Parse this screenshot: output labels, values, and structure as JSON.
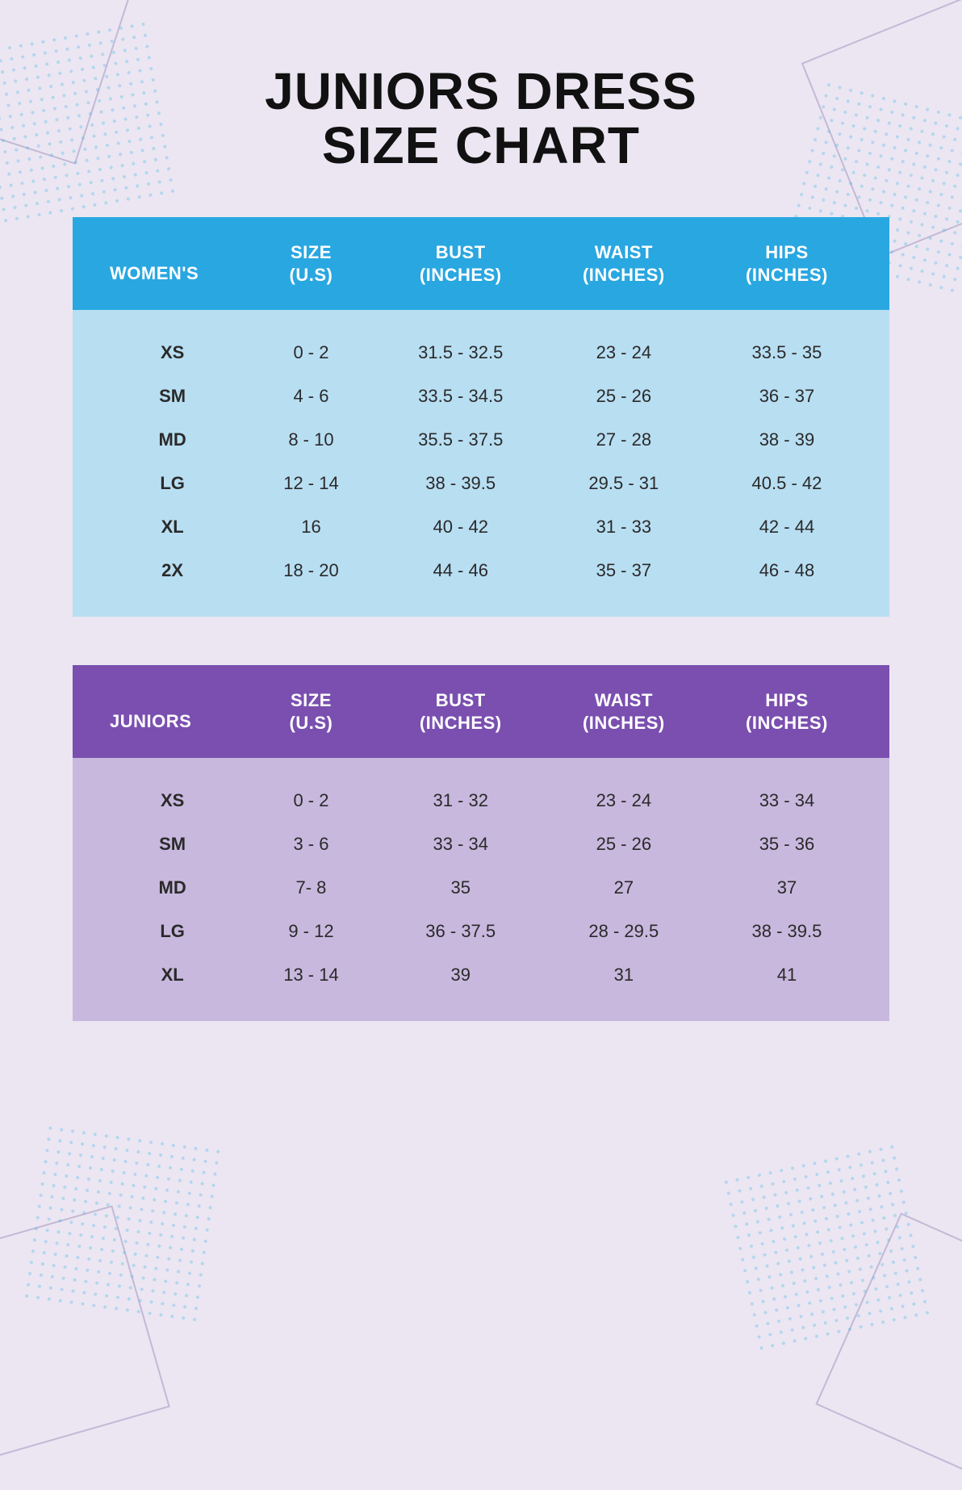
{
  "title_line1": "JUNIORS DRESS",
  "title_line2": "SIZE CHART",
  "colors": {
    "page_bg": "#ebe6f2",
    "womens_header": "#29a7e1",
    "womens_body": "#b8def2",
    "juniors_header": "#7a4fb0",
    "juniors_body": "#c8b8de",
    "header_text": "#ffffff",
    "body_text": "#2a2a2a",
    "decor_line": "rgba(120,100,160,0.35)",
    "decor_dot": "rgba(60,180,230,0.35)"
  },
  "typography": {
    "title_font": "Impact / Arial Black",
    "title_size_pt": 48,
    "header_size_pt": 16,
    "body_size_pt": 16
  },
  "columns": {
    "c0_womens": "WOMEN'S",
    "c0_juniors": "JUNIORS",
    "c1a": "SIZE",
    "c1b": "(U.S)",
    "c2a": "BUST",
    "c2b": "(INCHES)",
    "c3a": "WAIST",
    "c3b": "(INCHES)",
    "c4a": "HIPS",
    "c4b": "(INCHES)"
  },
  "womens": {
    "rows": [
      {
        "label": "XS",
        "size": "0 - 2",
        "bust": "31.5 - 32.5",
        "waist": "23 - 24",
        "hips": "33.5 - 35"
      },
      {
        "label": "SM",
        "size": "4 - 6",
        "bust": "33.5 - 34.5",
        "waist": "25 - 26",
        "hips": "36 - 37"
      },
      {
        "label": "MD",
        "size": "8 - 10",
        "bust": "35.5 - 37.5",
        "waist": "27 - 28",
        "hips": "38 - 39"
      },
      {
        "label": "LG",
        "size": "12 - 14",
        "bust": "38 - 39.5",
        "waist": "29.5 - 31",
        "hips": "40.5 - 42"
      },
      {
        "label": "XL",
        "size": "16",
        "bust": "40 - 42",
        "waist": "31 - 33",
        "hips": "42 - 44"
      },
      {
        "label": "2X",
        "size": "18 - 20",
        "bust": "44 - 46",
        "waist": "35 - 37",
        "hips": "46 - 48"
      }
    ]
  },
  "juniors": {
    "rows": [
      {
        "label": "XS",
        "size": "0 - 2",
        "bust": "31 - 32",
        "waist": "23 - 24",
        "hips": "33 - 34"
      },
      {
        "label": "SM",
        "size": "3 - 6",
        "bust": "33 - 34",
        "waist": "25 - 26",
        "hips": "35 - 36"
      },
      {
        "label": "MD",
        "size": "7- 8",
        "bust": "35",
        "waist": "27",
        "hips": "37"
      },
      {
        "label": "LG",
        "size": "9 - 12",
        "bust": "36 - 37.5",
        "waist": "28 - 29.5",
        "hips": "38 - 39.5"
      },
      {
        "label": "XL",
        "size": "13 - 14",
        "bust": "39",
        "waist": "31",
        "hips": "41"
      }
    ]
  }
}
